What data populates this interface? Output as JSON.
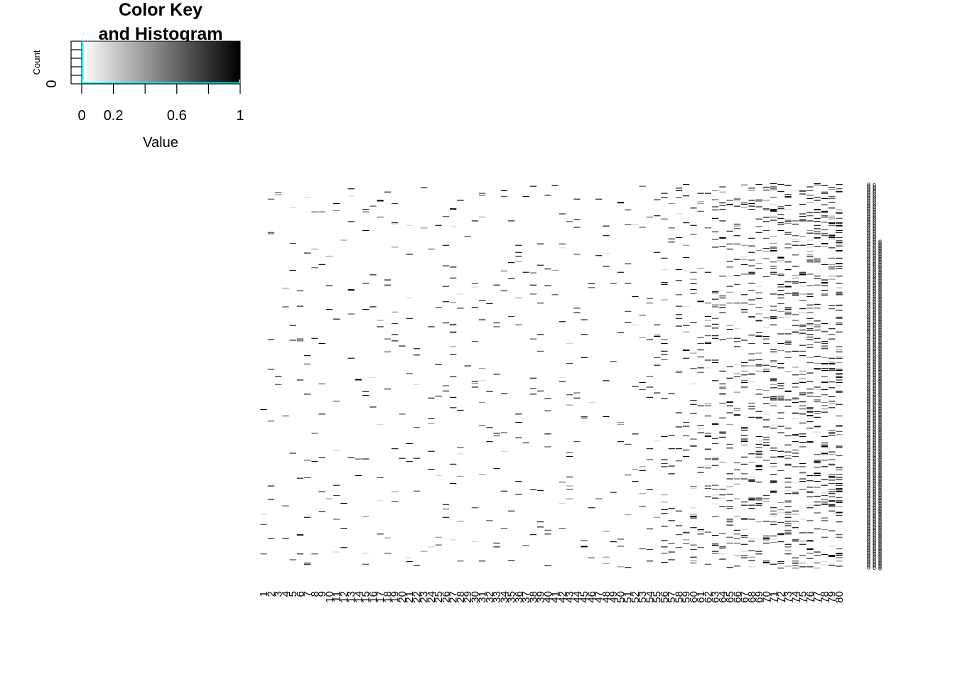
{
  "chart_data": [
    {
      "type": "histogram",
      "title": "Color Key\nand Histogram",
      "title_lines": [
        "Color Key",
        "and Histogram"
      ],
      "xlabel": "Value",
      "ylabel": "Count",
      "xlim": [
        0,
        1
      ],
      "x_tick_labels": [
        "0",
        "0.2",
        "0.6",
        "1"
      ],
      "x_ticks": [
        0,
        0.2,
        0.4,
        0.6,
        0.8,
        1
      ],
      "y_tick_labels": [
        "0"
      ],
      "color_scale": {
        "low": "#ffffff",
        "high": "#000000"
      },
      "histogram_color": "#00ffff"
    },
    {
      "type": "heatmap",
      "columns": [
        "1",
        "2",
        "3",
        "4",
        "5",
        "6",
        "7",
        "8",
        "9",
        "10",
        "11",
        "12",
        "13",
        "14",
        "15",
        "16",
        "17",
        "18",
        "19",
        "20",
        "21",
        "22",
        "23",
        "24",
        "25",
        "26",
        "27",
        "28",
        "29",
        "30",
        "31",
        "32",
        "33",
        "34",
        "35",
        "36",
        "37",
        "38",
        "39",
        "40",
        "41",
        "42",
        "43",
        "44",
        "45",
        "46",
        "47",
        "48",
        "49",
        "50",
        "51",
        "52",
        "53",
        "54",
        "55",
        "56",
        "57",
        "58",
        "59",
        "60",
        "61",
        "62",
        "63",
        "64",
        "65",
        "66",
        "67",
        "68",
        "69",
        "70",
        "71",
        "72",
        "73",
        "74",
        "75",
        "76",
        "77",
        "78",
        "79",
        "80"
      ],
      "row_count": 600,
      "value_range": [
        0,
        1
      ],
      "density_note": "sparse; values mostly 0, density increasing toward columns 55-80",
      "grid": false
    }
  ]
}
